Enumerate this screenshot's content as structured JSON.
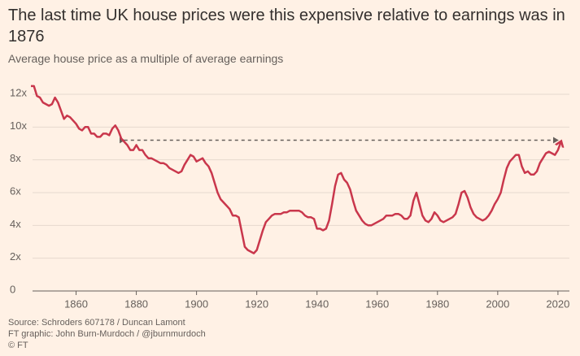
{
  "chart_data": {
    "type": "line",
    "title": "The last time UK house prices were this expensive relative to earnings was in 1876",
    "subtitle": "Average house price as a multiple of average earnings",
    "source": [
      "Source: Schroders 607178 / Duncan Lamont",
      "FT graphic: John Burn-Murdoch / @jburnmurdoch",
      "© FT"
    ],
    "color": "#c9374c",
    "x": [
      1845,
      1846,
      1847,
      1848,
      1849,
      1851,
      1852,
      1853,
      1854,
      1856,
      1857,
      1858,
      1860,
      1861,
      1862,
      1863,
      1864,
      1865,
      1866,
      1867,
      1868,
      1869,
      1870,
      1871,
      1872,
      1873,
      1874,
      1875,
      1876,
      1877,
      1878,
      1879,
      1880,
      1881,
      1882,
      1883,
      1884,
      1885,
      1887,
      1888,
      1889,
      1890,
      1891,
      1893,
      1894,
      1895,
      1896,
      1897,
      1898,
      1899,
      1900,
      1901,
      1902,
      1903,
      1904,
      1905,
      1906,
      1907,
      1908,
      1909,
      1910,
      1911,
      1912,
      1913,
      1914,
      1915,
      1916,
      1917,
      1918,
      1919,
      1920,
      1921,
      1922,
      1923,
      1924,
      1925,
      1926,
      1927,
      1928,
      1929,
      1930,
      1931,
      1932,
      1933,
      1934,
      1935,
      1936,
      1937,
      1938,
      1939,
      1940,
      1941,
      1942,
      1943,
      1944,
      1945,
      1946,
      1947,
      1948,
      1949,
      1950,
      1951,
      1952,
      1953,
      1954,
      1955,
      1956,
      1957,
      1958,
      1959,
      1960,
      1961,
      1962,
      1963,
      1964,
      1965,
      1966,
      1967,
      1968,
      1969,
      1970,
      1971,
      1972,
      1973,
      1974,
      1975,
      1976,
      1977,
      1978,
      1979,
      1980,
      1981,
      1982,
      1983,
      1984,
      1985,
      1986,
      1987,
      1988,
      1989,
      1990,
      1991,
      1992,
      1993,
      1994,
      1995,
      1996,
      1997,
      1998,
      1999,
      2000,
      2001,
      2002,
      2003,
      2004,
      2005,
      2006,
      2007,
      2008,
      2009,
      2010,
      2011,
      2012,
      2013,
      2014,
      2015,
      2016,
      2017,
      2018,
      2019,
      2020,
      2021
    ],
    "values": [
      12.5,
      12.5,
      11.9,
      11.8,
      11.5,
      11.3,
      11.4,
      11.8,
      11.5,
      10.5,
      10.7,
      10.6,
      10.2,
      9.9,
      9.8,
      10.0,
      10.0,
      9.6,
      9.6,
      9.4,
      9.4,
      9.6,
      9.6,
      9.5,
      9.9,
      10.1,
      9.8,
      9.3,
      9.1,
      8.9,
      8.6,
      8.6,
      8.9,
      8.6,
      8.6,
      8.3,
      8.1,
      8.1,
      7.9,
      7.8,
      7.8,
      7.7,
      7.5,
      7.3,
      7.2,
      7.3,
      7.7,
      8.0,
      8.3,
      8.2,
      7.9,
      8.0,
      8.1,
      7.8,
      7.6,
      7.2,
      6.6,
      6.0,
      5.6,
      5.4,
      5.2,
      5.0,
      4.6,
      4.6,
      4.5,
      3.6,
      2.7,
      2.5,
      2.4,
      2.3,
      2.5,
      3.1,
      3.7,
      4.2,
      4.4,
      4.6,
      4.7,
      4.7,
      4.7,
      4.8,
      4.8,
      4.9,
      4.9,
      4.9,
      4.9,
      4.8,
      4.6,
      4.5,
      4.5,
      4.4,
      3.8,
      3.8,
      3.7,
      3.8,
      4.3,
      5.3,
      6.4,
      7.1,
      7.2,
      6.8,
      6.6,
      6.2,
      5.5,
      4.9,
      4.6,
      4.3,
      4.1,
      4.0,
      4.0,
      4.1,
      4.2,
      4.3,
      4.4,
      4.6,
      4.6,
      4.6,
      4.7,
      4.7,
      4.6,
      4.4,
      4.4,
      4.6,
      5.5,
      6.0,
      5.3,
      4.6,
      4.3,
      4.2,
      4.4,
      4.8,
      4.6,
      4.3,
      4.2,
      4.3,
      4.4,
      4.5,
      4.7,
      5.3,
      6.0,
      6.1,
      5.7,
      5.1,
      4.7,
      4.5,
      4.4,
      4.3,
      4.4,
      4.6,
      4.9,
      5.3,
      5.6,
      6.0,
      6.8,
      7.5,
      7.9,
      8.1,
      8.3,
      8.3,
      7.6,
      7.2,
      7.3,
      7.1,
      7.1,
      7.3,
      7.8,
      8.1,
      8.4,
      8.5,
      8.4,
      8.3,
      8.6,
      9.1
    ],
    "reference": {
      "y": 9.2,
      "x0": 1876,
      "x1": 2020
    },
    "xlim": [
      1845,
      2023
    ],
    "ylim": [
      0,
      12
    ],
    "xticks": [
      1860,
      1880,
      1900,
      1920,
      1940,
      1960,
      1980,
      2000,
      2020
    ],
    "yticks": [
      0,
      {
        "value": 2,
        "label": "2x"
      },
      {
        "value": 4,
        "label": "4x"
      },
      {
        "value": 6,
        "label": "6x"
      },
      {
        "value": 8,
        "label": "8x"
      },
      {
        "value": 10,
        "label": "10x"
      },
      {
        "value": 12,
        "label": "12x"
      }
    ],
    "grid": true
  }
}
